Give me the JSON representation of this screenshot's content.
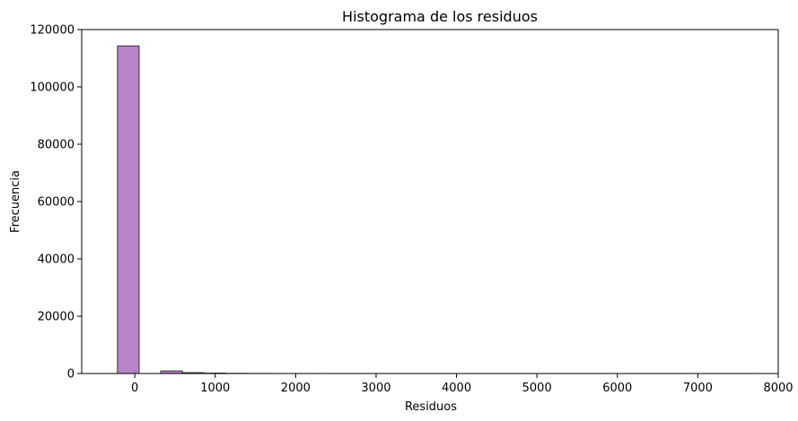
{
  "chart_data": {
    "type": "bar",
    "title": "Histograma de los residuos",
    "xlabel": "Residuos",
    "ylabel": "Frecuencia",
    "xlim": [
      -660,
      8000
    ],
    "ylim": [
      0,
      120000
    ],
    "x_ticks": [
      0,
      1000,
      2000,
      3000,
      4000,
      5000,
      6000,
      7000,
      8000
    ],
    "y_ticks": [
      0,
      20000,
      40000,
      60000,
      80000,
      100000,
      120000
    ],
    "bin_edges": [
      -250,
      -215,
      54,
      323,
      592,
      861,
      1130,
      1399,
      1668,
      1937,
      2206,
      2475,
      2744,
      3013,
      3282,
      3551,
      3820,
      4089,
      4358,
      4627,
      4896,
      5165,
      5434,
      5703,
      5972,
      6241,
      6510,
      6779,
      7048,
      7317,
      7586,
      7700
    ],
    "bins": [
      {
        "x0": -215,
        "x1": 54,
        "value": 114300
      },
      {
        "x0": 323,
        "x1": 592,
        "value": 900
      },
      {
        "x0": 592,
        "x1": 861,
        "value": 300
      },
      {
        "x0": 861,
        "x1": 1130,
        "value": 150
      },
      {
        "x0": 1130,
        "x1": 1399,
        "value": 60
      },
      {
        "x0": 1399,
        "x1": 1668,
        "value": 30
      },
      {
        "x0": 1668,
        "x1": 1937,
        "value": 15
      },
      {
        "x0": 1937,
        "x1": 2206,
        "value": 8
      },
      {
        "x0": 2206,
        "x1": 2475,
        "value": 5
      },
      {
        "x0": 2475,
        "x1": 2744,
        "value": 3
      },
      {
        "x0": 2744,
        "x1": 7700,
        "value": 2
      }
    ],
    "colors": {
      "bar_fill": "#b784c8",
      "bar_edge": "#333333"
    },
    "grid": false,
    "legend": "none"
  }
}
